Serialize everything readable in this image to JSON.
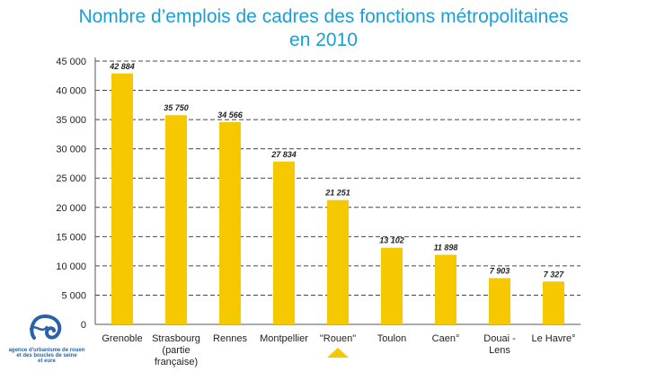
{
  "title": {
    "line1": "Nombre d’emplois de cadres des fonctions métropolitaines",
    "line2": "en 2010"
  },
  "colors": {
    "title": "#1b9fd6",
    "bar": "#f5c800",
    "highlight_marker": "#f5c800",
    "axis_text": "#222222",
    "grid": "#444444",
    "logo": "#2a62a8"
  },
  "logo": {
    "icon": "agency-logo-icon",
    "text": "agence d'urbanisme de rouen\net des boucles de seine\net eure"
  },
  "chart_data": {
    "type": "bar",
    "title": "Nombre d’emplois de cadres des fonctions métropolitaines en 2010",
    "xlabel": "",
    "ylabel": "",
    "ylim": [
      0,
      45000
    ],
    "yticks": [
      0,
      5000,
      10000,
      15000,
      20000,
      25000,
      30000,
      35000,
      40000,
      45000
    ],
    "ytick_labels": [
      "0",
      "5 000",
      "10 000",
      "15 000",
      "20 000",
      "25 000",
      "30 000",
      "35 000",
      "40 000",
      "45 000"
    ],
    "grid": "horizontal dashed",
    "highlighted_category": "\"Rouen\"",
    "categories": [
      [
        "Grenoble"
      ],
      [
        "Strasbourg",
        "(partie",
        "française)"
      ],
      [
        "Rennes"
      ],
      [
        "Montpellier"
      ],
      [
        "\"Rouen\""
      ],
      [
        "Toulon"
      ],
      [
        "Caen°"
      ],
      [
        "Douai -",
        "Lens"
      ],
      [
        "Le Havre°"
      ]
    ],
    "values": [
      42884,
      35750,
      34566,
      27834,
      21251,
      13102,
      11898,
      7903,
      7327
    ],
    "data_labels": [
      "42 884",
      "35 750",
      "34 566",
      "27 834",
      "21 251",
      "13 102",
      "11 898",
      "7 903",
      "7 327"
    ]
  }
}
